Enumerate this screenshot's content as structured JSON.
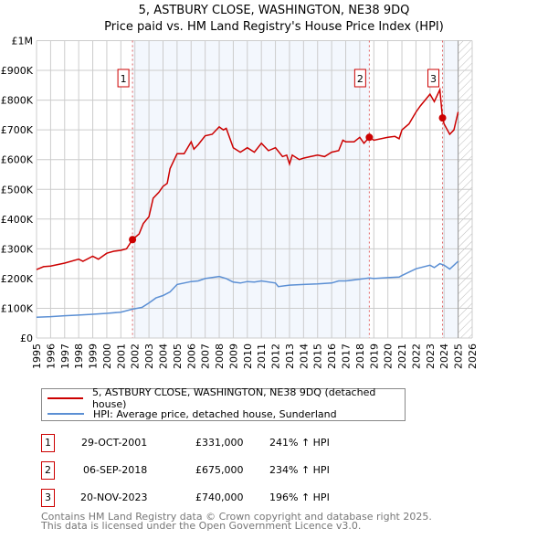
{
  "chart_data": {
    "type": "line",
    "title": "5, ASTBURY CLOSE, WASHINGTON, NE38 9DQ",
    "subtitle": "Price paid vs. HM Land Registry's House Price Index (HPI)",
    "xlim": [
      1995,
      2026
    ],
    "ylim": [
      0,
      1000000
    ],
    "x_ticks": [
      "1995",
      "1996",
      "1997",
      "1998",
      "1999",
      "2000",
      "2001",
      "2002",
      "2003",
      "2004",
      "2005",
      "2006",
      "2007",
      "2008",
      "2009",
      "2010",
      "2011",
      "2012",
      "2013",
      "2014",
      "2015",
      "2016",
      "2017",
      "2018",
      "2019",
      "2020",
      "2021",
      "2022",
      "2023",
      "2024",
      "2025",
      "2026"
    ],
    "y_ticks": [
      {
        "v": 0,
        "label": "£0"
      },
      {
        "v": 100000,
        "label": "£100K"
      },
      {
        "v": 200000,
        "label": "£200K"
      },
      {
        "v": 300000,
        "label": "£300K"
      },
      {
        "v": 400000,
        "label": "£400K"
      },
      {
        "v": 500000,
        "label": "£500K"
      },
      {
        "v": 600000,
        "label": "£600K"
      },
      {
        "v": 700000,
        "label": "£700K"
      },
      {
        "v": 800000,
        "label": "£800K"
      },
      {
        "v": 900000,
        "label": "£900K"
      },
      {
        "v": 1000000,
        "label": "£1M"
      }
    ],
    "grid": true,
    "data_end": 2025,
    "series": [
      {
        "name": "5, ASTBURY CLOSE, WASHINGTON, NE38 9DQ (detached house)",
        "color": "#cc0000",
        "x": [
          1995,
          1995.5,
          1996,
          1997,
          1998,
          1998.3,
          1999,
          1999.4,
          2000,
          2000.5,
          2001,
          2001.4,
          2001.83,
          2002.3,
          2002.6,
          2003,
          2003.3,
          2003.7,
          2004,
          2004.3,
          2004.5,
          2005,
          2005.5,
          2006,
          2006.2,
          2006.5,
          2007,
          2007.5,
          2008,
          2008.3,
          2008.5,
          2009,
          2009.5,
          2010,
          2010.5,
          2011,
          2011.5,
          2012,
          2012.5,
          2012.8,
          2013,
          2013.2,
          2013.7,
          2014,
          2014.5,
          2015,
          2015.5,
          2016,
          2016.5,
          2016.8,
          2017,
          2017.6,
          2018,
          2018.3,
          2018.68,
          2019,
          2020,
          2020.5,
          2020.8,
          2021,
          2021.5,
          2022,
          2022.3,
          2023,
          2023.3,
          2023.7,
          2023.89,
          2024,
          2024.4,
          2024.7,
          2025
        ],
        "y": [
          230000,
          240000,
          242000,
          252000,
          265000,
          258000,
          275000,
          265000,
          285000,
          292000,
          295000,
          300000,
          331000,
          350000,
          385000,
          408000,
          470000,
          490000,
          510000,
          520000,
          570000,
          620000,
          620000,
          660000,
          635000,
          650000,
          680000,
          685000,
          710000,
          700000,
          705000,
          640000,
          625000,
          640000,
          625000,
          655000,
          630000,
          640000,
          610000,
          615000,
          585000,
          615000,
          600000,
          605000,
          610000,
          615000,
          610000,
          625000,
          630000,
          665000,
          660000,
          660000,
          675000,
          655000,
          675000,
          665000,
          675000,
          678000,
          670000,
          700000,
          720000,
          760000,
          780000,
          820000,
          795000,
          835000,
          740000,
          720000,
          685000,
          700000,
          760000
        ]
      },
      {
        "name": "HPI: Average price, detached house, Sunderland",
        "color": "#5b8fd4",
        "x": [
          1995,
          1996,
          1997,
          1998,
          1999,
          2000,
          2001,
          2001.83,
          2002.5,
          2003,
          2003.5,
          2004,
          2004.5,
          2005,
          2006,
          2006.5,
          2007,
          2008,
          2008.5,
          2009,
          2009.5,
          2010,
          2010.5,
          2011,
          2012,
          2012.2,
          2013,
          2014,
          2015,
          2016,
          2016.5,
          2017,
          2018,
          2018.68,
          2019,
          2020,
          2020.8,
          2021,
          2022,
          2023,
          2023.3,
          2023.7,
          2024,
          2024.4,
          2024.7,
          2025
        ],
        "y": [
          70000,
          72000,
          75000,
          77000,
          80000,
          83000,
          87000,
          97000,
          103000,
          118000,
          135000,
          143000,
          155000,
          180000,
          190000,
          192000,
          200000,
          207000,
          200000,
          188000,
          185000,
          190000,
          188000,
          192000,
          185000,
          173000,
          178000,
          180000,
          182000,
          185000,
          192000,
          192000,
          198000,
          202000,
          200000,
          203000,
          205000,
          210000,
          233000,
          245000,
          237000,
          250000,
          245000,
          232000,
          245000,
          258000
        ]
      }
    ],
    "sales": [
      {
        "n": "1",
        "x": 2001.83,
        "y": 331000,
        "date": "29-OCT-2001",
        "price": "£331,000",
        "hpi": "241% ↑ HPI"
      },
      {
        "n": "2",
        "x": 2018.68,
        "y": 675000,
        "date": "06-SEP-2018",
        "price": "£675,000",
        "hpi": "234% ↑ HPI"
      },
      {
        "n": "3",
        "x": 2023.89,
        "y": 740000,
        "date": "20-NOV-2023",
        "price": "£740,000",
        "hpi": "196% ↑ HPI"
      }
    ]
  },
  "footer": {
    "line1": "Contains HM Land Registry data © Crown copyright and database right 2025.",
    "line2": "This data is licensed under the Open Government Licence v3.0."
  }
}
